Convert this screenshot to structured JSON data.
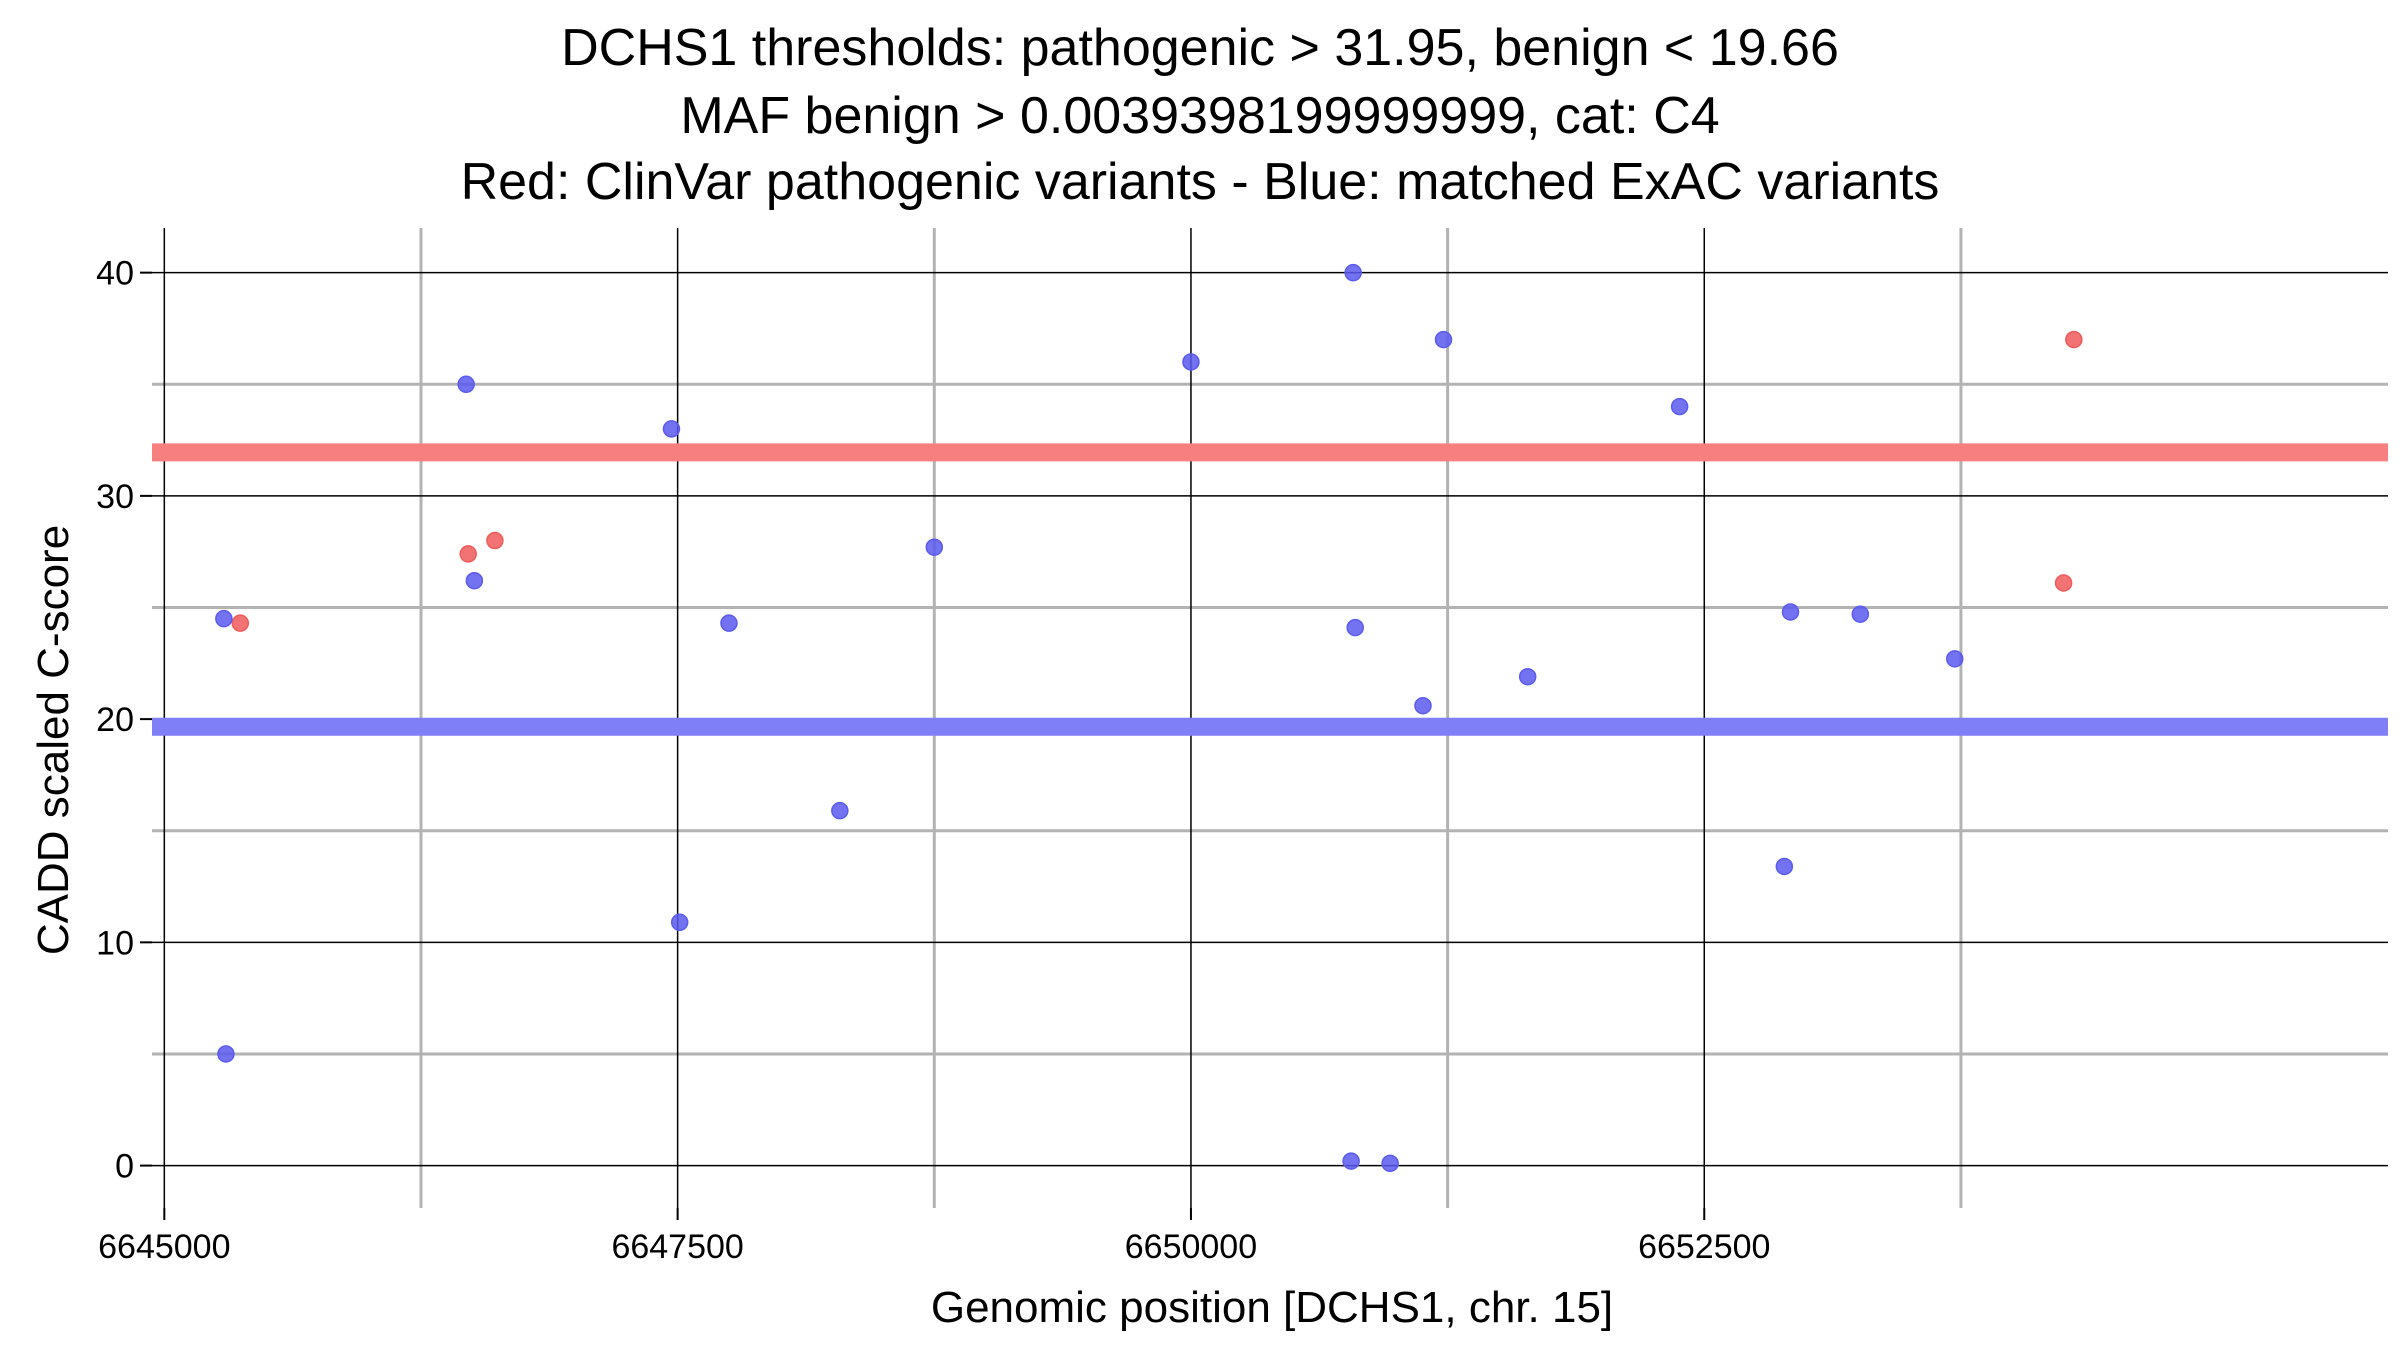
{
  "title_lines": [
    "DCHS1 thresholds: pathogenic > 31.95, benign < 19.66",
    "MAF benign > 0.0039398199999999, cat: C4",
    "Red: ClinVar pathogenic variants - Blue: matched ExAC variants"
  ],
  "chart_data": {
    "type": "scatter",
    "xlabel": "Genomic position [DCHS1, chr. 15]",
    "ylabel": "CADD scaled C-score",
    "xlim": [
      6644940,
      6655830
    ],
    "ylim": [
      -1.9,
      42
    ],
    "x_ticks": [
      6645000,
      6647500,
      6650000,
      6652500
    ],
    "x_tick_labels": [
      "6645000",
      "6647500",
      "6650000",
      "6652500"
    ],
    "x_minor_ticks": [
      6646250,
      6648750,
      6651250,
      6653750
    ],
    "y_ticks": [
      0,
      10,
      20,
      30,
      40
    ],
    "y_tick_labels": [
      "0",
      "10",
      "20",
      "30",
      "40"
    ],
    "y_minor_ticks": [
      5,
      15,
      25,
      35
    ],
    "grid": true,
    "thresholds": [
      {
        "value": 31.95,
        "color": "#f87f7f"
      },
      {
        "value": 19.66,
        "color": "#7f7ff8"
      }
    ],
    "series": [
      {
        "color": "#ef5b5b",
        "points": [
          {
            "x": 6645370,
            "y": 24.3
          },
          {
            "x": 6646480,
            "y": 27.4
          },
          {
            "x": 6646610,
            "y": 28.0
          },
          {
            "x": 6654250,
            "y": 26.1
          },
          {
            "x": 6654300,
            "y": 37.0
          }
        ]
      },
      {
        "color": "#5b5bef",
        "points": [
          {
            "x": 6645290,
            "y": 24.5
          },
          {
            "x": 6645300,
            "y": 5.0
          },
          {
            "x": 6646470,
            "y": 35.0
          },
          {
            "x": 6646510,
            "y": 26.2
          },
          {
            "x": 6647470,
            "y": 33.0
          },
          {
            "x": 6647510,
            "y": 10.9
          },
          {
            "x": 6647750,
            "y": 24.3
          },
          {
            "x": 6648290,
            "y": 15.9
          },
          {
            "x": 6648750,
            "y": 27.7
          },
          {
            "x": 6650000,
            "y": 36.0
          },
          {
            "x": 6650790,
            "y": 40.0
          },
          {
            "x": 6650780,
            "y": 0.2
          },
          {
            "x": 6650800,
            "y": 24.1
          },
          {
            "x": 6650970,
            "y": 0.1
          },
          {
            "x": 6651130,
            "y": 20.6
          },
          {
            "x": 6651230,
            "y": 37.0
          },
          {
            "x": 6651640,
            "y": 21.9
          },
          {
            "x": 6652380,
            "y": 34.0
          },
          {
            "x": 6652890,
            "y": 13.4
          },
          {
            "x": 6652920,
            "y": 24.8
          },
          {
            "x": 6653260,
            "y": 24.7
          },
          {
            "x": 6653720,
            "y": 22.7
          }
        ]
      }
    ]
  }
}
